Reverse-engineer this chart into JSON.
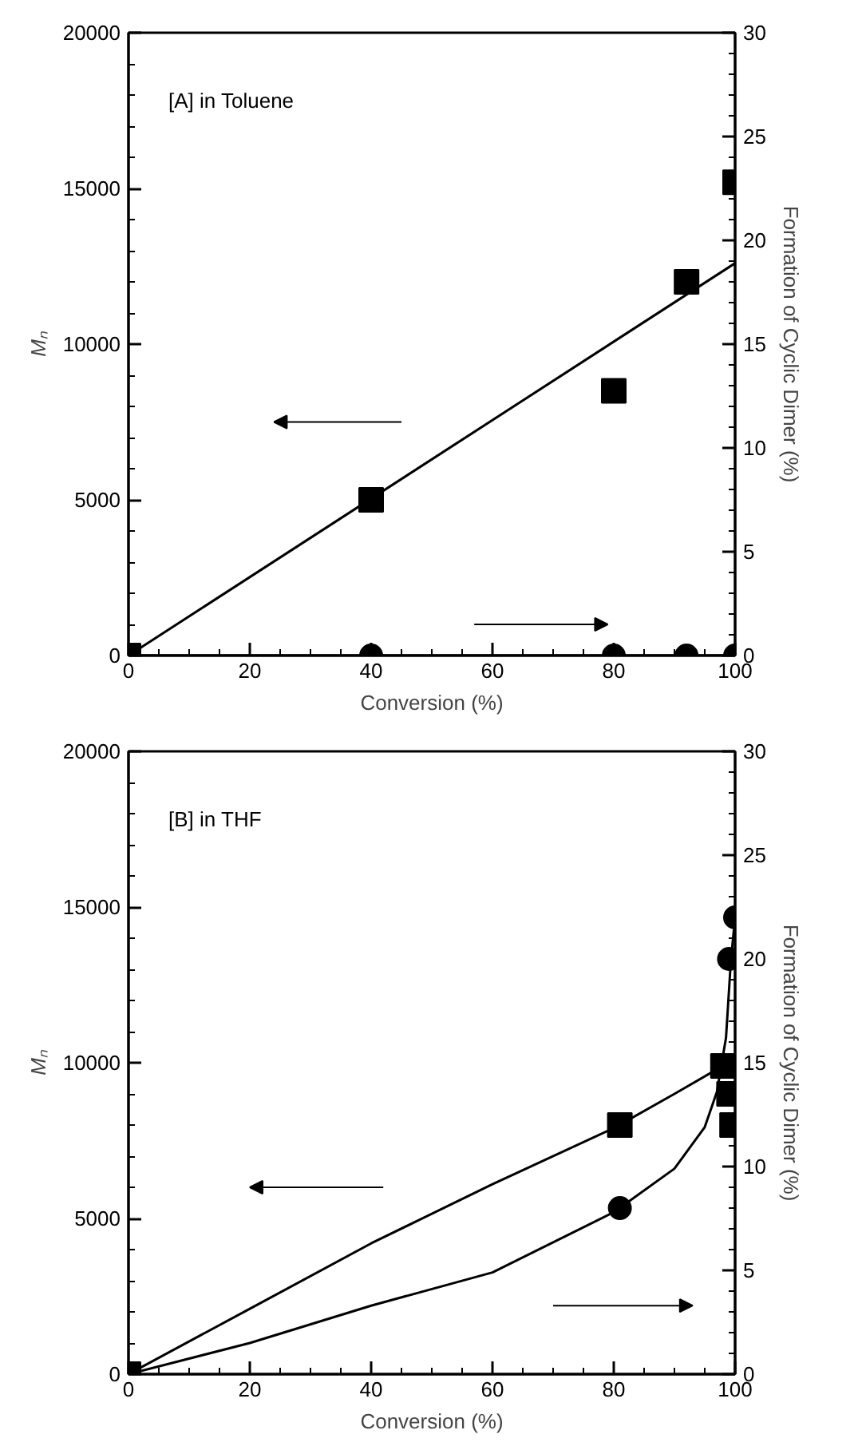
{
  "chart_data": [
    {
      "type": "scatter",
      "xlabel": "Conversion (%)",
      "ylabel": "Mₙ",
      "y2label": "Formation of Cyclic Dimer (%)",
      "xlim": [
        0,
        100
      ],
      "xticks": [
        0,
        20,
        40,
        60,
        80,
        100
      ],
      "ylim": [
        0,
        20000
      ],
      "yticks": [
        0,
        5000,
        10000,
        15000,
        20000
      ],
      "y2lim": [
        0,
        30
      ],
      "y2ticks": [
        0,
        5,
        10,
        15,
        20,
        25,
        30
      ],
      "annotations": [
        "[A]  in Toluene"
      ],
      "series": [
        {
          "marker": "square",
          "color": "#000000",
          "x": [
            0,
            40,
            80,
            92,
            100
          ],
          "values": [
            0,
            5000,
            8500,
            12000,
            15200
          ]
        },
        {
          "type": "line",
          "color": "#000000",
          "x": [
            0,
            100
          ],
          "values": [
            0,
            12600
          ]
        },
        {
          "marker": "circle",
          "axis": "y2",
          "color": "#000000",
          "x": [
            40,
            80,
            92,
            100
          ],
          "values": [
            0,
            0,
            0,
            0
          ]
        },
        {
          "type": "line",
          "axis": "y2",
          "color": "#000000",
          "x": [
            0,
            100
          ],
          "values": [
            0,
            0
          ]
        }
      ]
    },
    {
      "type": "scatter",
      "xlabel": "Conversion (%)",
      "ylabel": "Mₙ",
      "y2label": "Formation of Cyclic Dimer (%)",
      "xlim": [
        0,
        100
      ],
      "xticks": [
        0,
        20,
        40,
        60,
        80,
        100
      ],
      "ylim": [
        0,
        20000
      ],
      "yticks": [
        0,
        5000,
        10000,
        15000,
        20000
      ],
      "y2lim": [
        0,
        30
      ],
      "y2ticks": [
        0,
        5,
        10,
        15,
        20,
        25,
        30
      ],
      "annotations": [
        "[B]  in THF"
      ],
      "series": [
        {
          "marker": "square",
          "color": "#000000",
          "x": [
            0,
            81,
            98,
            99,
            99.5
          ],
          "values": [
            0,
            8000,
            9900,
            9000,
            8000
          ]
        },
        {
          "type": "line",
          "color": "#000000",
          "x": [
            0,
            20,
            40,
            60,
            80,
            90,
            98
          ],
          "values": [
            0,
            2100,
            4200,
            6100,
            7900,
            9000,
            9900
          ]
        },
        {
          "marker": "circle",
          "axis": "y2",
          "color": "#000000",
          "x": [
            81,
            99,
            100
          ],
          "values": [
            8,
            20,
            22
          ]
        },
        {
          "type": "line",
          "axis": "y2",
          "color": "#000000",
          "x": [
            0,
            20,
            40,
            60,
            80,
            90,
            95,
            97,
            98.5,
            99.3,
            100
          ],
          "values": [
            0,
            1.5,
            3.3,
            4.9,
            7.8,
            9.9,
            11.9,
            13.6,
            16.2,
            19.9,
            22
          ]
        }
      ]
    }
  ]
}
